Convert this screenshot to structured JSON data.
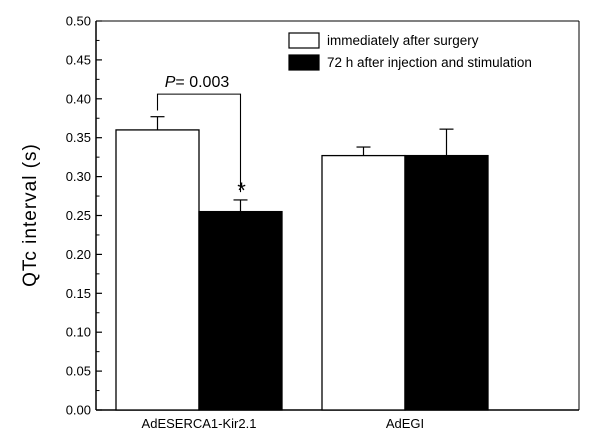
{
  "chart_data": {
    "type": "bar",
    "ylabel": "QTc  interval (s)",
    "xlabel": "",
    "ylim": [
      0,
      0.5
    ],
    "yticks": [
      "0.00",
      "0.05",
      "0.10",
      "0.15",
      "0.20",
      "0.25",
      "0.30",
      "0.35",
      "0.40",
      "0.45",
      "0.50"
    ],
    "categories": [
      "AdESERCA1-Kir2.1",
      "AdEGI"
    ],
    "series": [
      {
        "name": "immediately after surgery",
        "color": "#ffffff",
        "values": [
          0.36,
          0.327
        ],
        "errors": [
          0.017,
          0.011
        ]
      },
      {
        "name": "72 h after injection and stimulation",
        "color": "#000000",
        "values": [
          0.255,
          0.327
        ],
        "errors": [
          0.015,
          0.034
        ]
      }
    ],
    "legend_position": "top-right",
    "annotations": {
      "p_label": "P",
      "p_value": "= 0.003",
      "star": "*"
    },
    "grid": false
  }
}
